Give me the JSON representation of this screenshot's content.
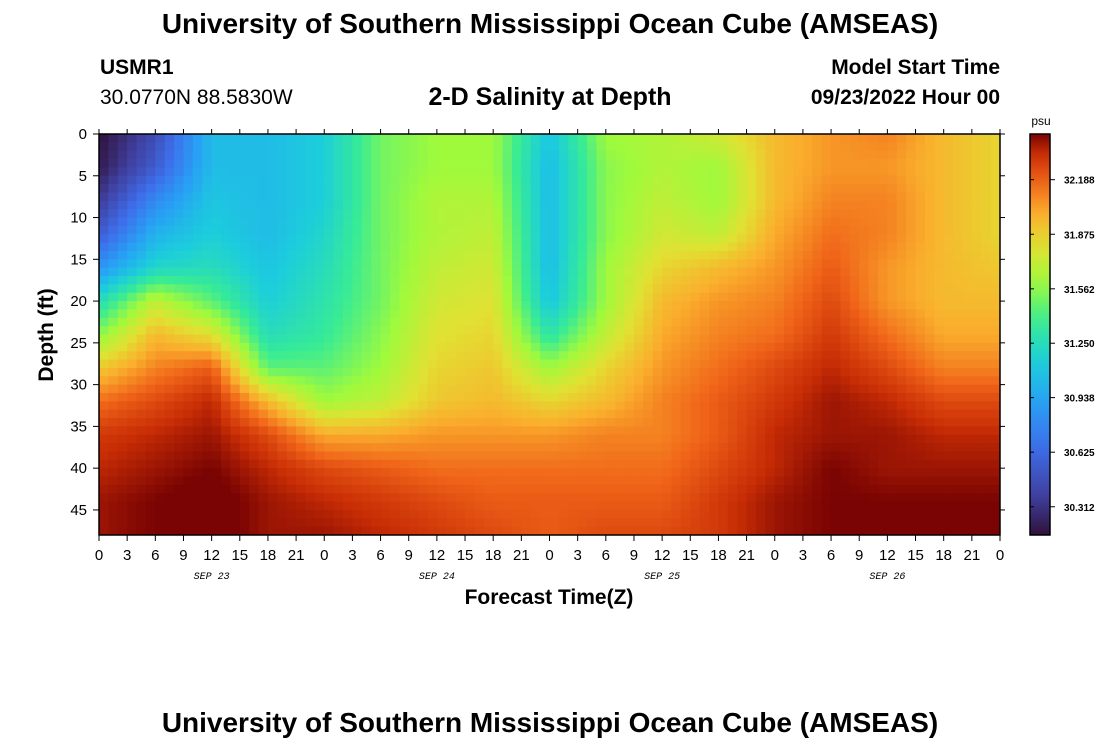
{
  "page": {
    "title": "University of Southern Mississippi Ocean Cube (AMSEAS)",
    "title_bottom": "University of Southern Mississippi Ocean Cube (AMSEAS)",
    "station_id": "USMR1",
    "coordinates": "30.0770N  88.5830W",
    "subtitle": "2-D Salinity at Depth",
    "model_start_label": "Model Start Time",
    "model_start_value": "09/23/2022 Hour 00"
  },
  "chart_data": {
    "type": "heatmap",
    "title": "2-D Salinity at Depth",
    "xlabel": "Forecast Time(Z)",
    "ylabel": "Depth (ft)",
    "x_unit": "forecast hour",
    "x_range": [
      0,
      96
    ],
    "y_range": [
      0,
      48
    ],
    "y_inverted": true,
    "x_tick_values": [
      0,
      3,
      6,
      9,
      12,
      15,
      18,
      21,
      24,
      27,
      30,
      33,
      36,
      39,
      42,
      45,
      48,
      51,
      54,
      57,
      60,
      63,
      66,
      69,
      72,
      75,
      78,
      81,
      84,
      87,
      90,
      93,
      96
    ],
    "x_tick_labels": [
      "0",
      "3",
      "6",
      "9",
      "12",
      "15",
      "18",
      "21",
      "0",
      "3",
      "6",
      "9",
      "12",
      "15",
      "18",
      "21",
      "0",
      "3",
      "6",
      "9",
      "12",
      "15",
      "18",
      "21",
      "0",
      "3",
      "6",
      "9",
      "12",
      "15",
      "18",
      "21",
      "0"
    ],
    "date_labels": [
      {
        "text": "SEP 23",
        "hour": 12
      },
      {
        "text": "SEP 24",
        "hour": 36
      },
      {
        "text": "SEP 25",
        "hour": 60
      },
      {
        "text": "SEP 26",
        "hour": 84
      }
    ],
    "y_tick_values": [
      0,
      5,
      10,
      15,
      20,
      25,
      30,
      35,
      40,
      45
    ],
    "y_tick_labels": [
      "0",
      "5",
      "10",
      "15",
      "20",
      "25",
      "30",
      "35",
      "40",
      "45"
    ],
    "colorbar": {
      "unit": "psu",
      "min": 30.15,
      "max": 32.45,
      "tick_values": [
        30.312,
        30.625,
        30.938,
        31.25,
        31.562,
        31.875,
        32.188
      ],
      "tick_labels": [
        "30.312",
        "30.625",
        "30.938",
        "31.250",
        "31.562",
        "31.875",
        "32.188"
      ]
    },
    "grid_x_hours": [
      0,
      6,
      12,
      18,
      24,
      30,
      36,
      42,
      48,
      54,
      60,
      66,
      72,
      78,
      84,
      90,
      96
    ],
    "grid_depths_ft": [
      0,
      4,
      8,
      12,
      16,
      20,
      24,
      28,
      32,
      36,
      40,
      44,
      48
    ],
    "salinity_psu": [
      [
        30.15,
        30.45,
        31.05,
        31.05,
        31.15,
        31.5,
        31.6,
        31.6,
        31.1,
        31.6,
        31.65,
        31.75,
        31.95,
        32.05,
        32.1,
        31.95,
        31.85
      ],
      [
        30.2,
        30.55,
        31.05,
        31.05,
        31.15,
        31.5,
        31.6,
        31.6,
        31.05,
        31.55,
        31.65,
        31.6,
        31.95,
        32.05,
        32.05,
        31.95,
        31.85
      ],
      [
        30.35,
        30.8,
        31.1,
        31.05,
        31.15,
        31.5,
        31.65,
        31.65,
        31.05,
        31.55,
        31.7,
        31.6,
        31.95,
        32.1,
        32.1,
        31.95,
        31.85
      ],
      [
        30.55,
        31.0,
        31.15,
        31.05,
        31.2,
        31.5,
        31.65,
        31.7,
        31.05,
        31.55,
        31.75,
        31.7,
        32.0,
        32.15,
        32.1,
        31.95,
        31.85
      ],
      [
        30.85,
        31.2,
        31.25,
        31.1,
        31.25,
        31.5,
        31.7,
        31.75,
        31.05,
        31.6,
        31.85,
        31.95,
        32.05,
        32.2,
        32.05,
        31.95,
        31.9
      ],
      [
        31.25,
        31.7,
        31.45,
        31.15,
        31.3,
        31.5,
        31.75,
        31.8,
        31.1,
        31.6,
        31.95,
        32.05,
        32.1,
        32.25,
        32.05,
        31.95,
        31.95
      ],
      [
        31.55,
        31.95,
        31.8,
        31.25,
        31.35,
        31.55,
        31.8,
        31.85,
        31.3,
        31.7,
        32.0,
        32.1,
        32.15,
        32.3,
        32.15,
        32.0,
        32.0
      ],
      [
        31.9,
        32.1,
        32.2,
        31.45,
        31.45,
        31.6,
        31.85,
        31.9,
        31.6,
        31.85,
        32.05,
        32.15,
        32.25,
        32.35,
        32.25,
        32.1,
        32.1
      ],
      [
        32.15,
        32.25,
        32.35,
        31.95,
        31.6,
        31.7,
        31.9,
        31.95,
        31.85,
        31.95,
        32.1,
        32.2,
        32.3,
        32.4,
        32.35,
        32.25,
        32.25
      ],
      [
        32.3,
        32.35,
        32.4,
        32.25,
        32.0,
        32.0,
        32.05,
        32.05,
        32.05,
        32.1,
        32.1,
        32.2,
        32.35,
        32.4,
        32.4,
        32.35,
        32.35
      ],
      [
        32.35,
        32.4,
        32.45,
        32.35,
        32.25,
        32.2,
        32.15,
        32.15,
        32.15,
        32.15,
        32.15,
        32.25,
        32.35,
        32.45,
        32.4,
        32.4,
        32.4
      ],
      [
        32.4,
        32.45,
        32.5,
        32.4,
        32.35,
        32.3,
        32.25,
        32.2,
        32.2,
        32.2,
        32.2,
        32.3,
        32.4,
        32.45,
        32.45,
        32.45,
        32.45
      ],
      [
        32.4,
        32.45,
        32.5,
        32.4,
        32.4,
        32.35,
        32.3,
        32.25,
        32.2,
        32.25,
        32.25,
        32.3,
        32.4,
        32.45,
        32.45,
        32.45,
        32.45
      ]
    ]
  }
}
